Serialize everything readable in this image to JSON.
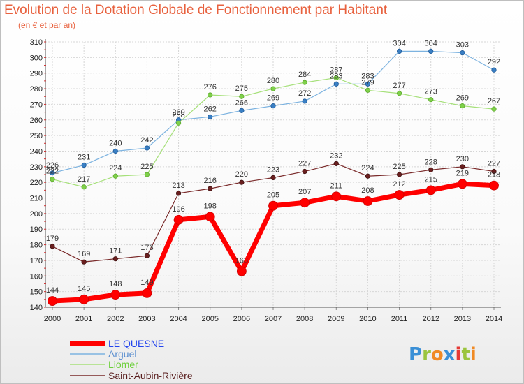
{
  "chart_data": {
    "type": "line",
    "title": "Evolution de la Dotation Globale de Fonctionnement par Habitant",
    "subtitle": "(en € et par an)",
    "xlabel": "",
    "ylabel": "",
    "x": [
      2000,
      2001,
      2002,
      2003,
      2004,
      2005,
      2006,
      2007,
      2008,
      2009,
      2010,
      2011,
      2012,
      2013,
      2014
    ],
    "ylim": [
      140,
      310
    ],
    "yticks": [
      140,
      150,
      160,
      170,
      180,
      190,
      200,
      210,
      220,
      230,
      240,
      250,
      260,
      270,
      280,
      290,
      300,
      310
    ],
    "grid": true,
    "legend_position": "bottom-left",
    "series": [
      {
        "name": "LE QUESNE",
        "color": "#ff0000",
        "values": [
          144,
          145,
          148,
          149,
          196,
          198,
          163,
          205,
          207,
          211,
          208,
          212,
          215,
          219,
          218
        ]
      },
      {
        "name": "Arguel",
        "color": "#6fa8dc",
        "values": [
          226,
          231,
          240,
          242,
          260,
          262,
          266,
          269,
          272,
          283,
          283,
          304,
          304,
          303,
          292
        ]
      },
      {
        "name": "Liomer",
        "color": "#99dd66",
        "values": [
          222,
          217,
          224,
          225,
          258,
          276,
          275,
          280,
          284,
          287,
          279,
          277,
          273,
          269,
          267
        ]
      },
      {
        "name": "Saint-Aubin-Rivière",
        "color": "#7a2a2a",
        "values": [
          179,
          169,
          171,
          173,
          213,
          216,
          220,
          223,
          227,
          232,
          224,
          225,
          228,
          230,
          227
        ]
      }
    ]
  },
  "branding": {
    "logo_text": "Proxiti"
  }
}
